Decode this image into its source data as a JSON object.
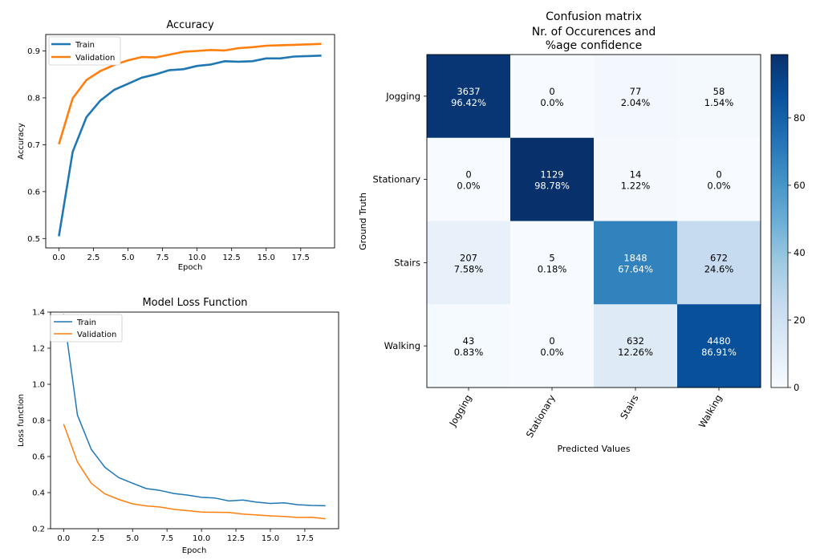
{
  "colors": {
    "train": "#1f77b4",
    "validation": "#ff7f0e"
  },
  "chart_data": [
    {
      "type": "line",
      "title": "Accuracy",
      "xlabel": "Epoch",
      "ylabel": "Accuracy",
      "xlim": [
        -0.95,
        19.95
      ],
      "ylim": [
        0.48,
        0.935
      ],
      "xticks": [
        0.0,
        2.5,
        5.0,
        7.5,
        10.0,
        12.5,
        15.0,
        17.5
      ],
      "xtick_labels": [
        "0.0",
        "2.5",
        "5.0",
        "7.5",
        "10.0",
        "12.5",
        "15.0",
        "17.5"
      ],
      "yticks": [
        0.5,
        0.6,
        0.7,
        0.8,
        0.9
      ],
      "ytick_labels": [
        "0.5",
        "0.6",
        "0.7",
        "0.8",
        "0.9"
      ],
      "legend_position": "top-left",
      "grid": false,
      "x": [
        0,
        1,
        2,
        3,
        4,
        5,
        6,
        7,
        8,
        9,
        10,
        11,
        12,
        13,
        14,
        15,
        16,
        17,
        18,
        19
      ],
      "series": [
        {
          "name": "Train",
          "color": "#1f77b4",
          "values": [
            0.505,
            0.685,
            0.759,
            0.794,
            0.817,
            0.83,
            0.843,
            0.85,
            0.859,
            0.861,
            0.868,
            0.871,
            0.878,
            0.877,
            0.878,
            0.884,
            0.884,
            0.888,
            0.889,
            0.89
          ]
        },
        {
          "name": "Validation",
          "color": "#ff7f0e",
          "values": [
            0.701,
            0.799,
            0.838,
            0.857,
            0.87,
            0.88,
            0.887,
            0.886,
            0.892,
            0.898,
            0.9,
            0.902,
            0.901,
            0.906,
            0.908,
            0.911,
            0.912,
            0.913,
            0.914,
            0.915
          ]
        }
      ]
    },
    {
      "type": "line",
      "title": "Model Loss Function",
      "xlabel": "Epoch",
      "ylabel": "Loss function",
      "xlim": [
        -0.95,
        19.95
      ],
      "ylim": [
        0.2,
        1.4
      ],
      "xticks": [
        0.0,
        2.5,
        5.0,
        7.5,
        10.0,
        12.5,
        15.0,
        17.5
      ],
      "xtick_labels": [
        "0.0",
        "2.5",
        "5.0",
        "7.5",
        "10.0",
        "12.5",
        "15.0",
        "17.5"
      ],
      "yticks": [
        0.2,
        0.4,
        0.6,
        0.8,
        1.0,
        1.2,
        1.4
      ],
      "ytick_labels": [
        "0.2",
        "0.4",
        "0.6",
        "0.8",
        "1.0",
        "1.2",
        "1.4"
      ],
      "legend_position": "top-left",
      "grid": false,
      "x": [
        0,
        1,
        2,
        3,
        4,
        5,
        6,
        7,
        8,
        9,
        10,
        11,
        12,
        13,
        14,
        15,
        16,
        17,
        18,
        19
      ],
      "series": [
        {
          "name": "Train",
          "color": "#1f77b4",
          "values": [
            1.39,
            0.83,
            0.64,
            0.54,
            0.483,
            0.452,
            0.422,
            0.412,
            0.395,
            0.386,
            0.374,
            0.37,
            0.354,
            0.359,
            0.347,
            0.34,
            0.343,
            0.333,
            0.329,
            0.327
          ]
        },
        {
          "name": "Validation",
          "color": "#ff7f0e",
          "values": [
            0.78,
            0.57,
            0.452,
            0.393,
            0.362,
            0.338,
            0.326,
            0.32,
            0.307,
            0.3,
            0.292,
            0.291,
            0.29,
            0.281,
            0.276,
            0.271,
            0.268,
            0.262,
            0.263,
            0.255
          ]
        }
      ]
    },
    {
      "type": "heatmap",
      "title_lines": [
        "Confusion matrix",
        "Nr. of Occurences and",
        "%age confidence"
      ],
      "xlabel": "Predicted Values",
      "ylabel": "Ground Truth",
      "columns": [
        "Jogging",
        "Stationary",
        "Stairs",
        "Walking"
      ],
      "rows": [
        "Jogging",
        "Stationary",
        "Stairs",
        "Walking"
      ],
      "counts": [
        [
          3637,
          0,
          77,
          58
        ],
        [
          0,
          1129,
          14,
          0
        ],
        [
          207,
          5,
          1848,
          672
        ],
        [
          43,
          0,
          632,
          4480
        ]
      ],
      "percent_labels": [
        [
          "96.42%",
          "0.0%",
          "2.04%",
          "1.54%"
        ],
        [
          "0.0%",
          "98.78%",
          "1.22%",
          "0.0%"
        ],
        [
          "7.58%",
          "0.18%",
          "67.64%",
          "24.6%"
        ],
        [
          "0.83%",
          "0.0%",
          "12.26%",
          "86.91%"
        ]
      ],
      "percent_values": [
        [
          96.42,
          0.0,
          2.04,
          1.54
        ],
        [
          0.0,
          98.78,
          1.22,
          0.0
        ],
        [
          7.58,
          0.18,
          67.64,
          24.6
        ],
        [
          0.83,
          0.0,
          12.26,
          86.91
        ]
      ],
      "colorbar": {
        "vmin": 0,
        "vmax": 98.78,
        "ticks": [
          0,
          20,
          40,
          60,
          80
        ],
        "tick_labels": [
          "0",
          "20",
          "40",
          "60",
          "80"
        ],
        "colormap": "Blues"
      }
    }
  ]
}
